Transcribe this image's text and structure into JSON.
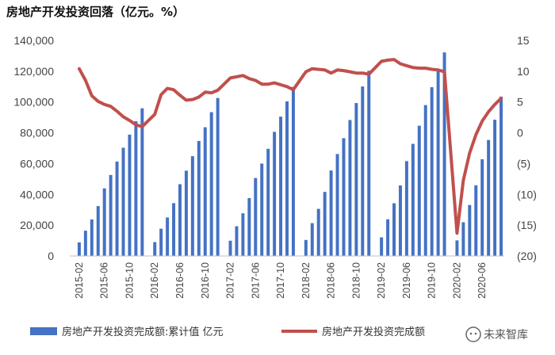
{
  "chart_data": {
    "type": "bar",
    "title": "房地产开发投资回落（亿元。%）",
    "x_tick_labels": [
      "2015-02",
      "2015-06",
      "2015-10",
      "2016-02",
      "2016-06",
      "2016-10",
      "2017-02",
      "2017-06",
      "2017-10",
      "2018-02",
      "2018-06",
      "2018-10",
      "2019-02",
      "2019-06",
      "2019-10",
      "2020-02",
      "2020-06"
    ],
    "y_left": {
      "ticks": [
        "0",
        "20,000",
        "40,000",
        "60,000",
        "80,000",
        "100,000",
        "120,000",
        "140,000"
      ],
      "ylim": [
        0,
        140000
      ]
    },
    "y_right": {
      "ticks": [
        "15",
        "10",
        "5",
        "0",
        "(5)",
        "(10)",
        "(15)",
        "(20)"
      ],
      "ylim": [
        -20,
        15
      ]
    },
    "grid": false,
    "legend": "bottom",
    "colors": {
      "bar": "#4472C4",
      "line": "#C0504D"
    },
    "series": [
      {
        "name": "房地产开发投资完成额:累计值 亿元",
        "type": "bar",
        "axis": "left",
        "points": [
          [
            "2015-02",
            8800
          ],
          [
            "2015-03",
            16400
          ],
          [
            "2015-04",
            23700
          ],
          [
            "2015-05",
            32400
          ],
          [
            "2015-06",
            43900
          ],
          [
            "2015-07",
            52600
          ],
          [
            "2015-08",
            61300
          ],
          [
            "2015-09",
            70300
          ],
          [
            "2015-10",
            78800
          ],
          [
            "2015-11",
            87500
          ],
          [
            "2015-12",
            95900
          ],
          [
            "2016-02",
            9000
          ],
          [
            "2016-03",
            17700
          ],
          [
            "2016-04",
            25000
          ],
          [
            "2016-05",
            34300
          ],
          [
            "2016-06",
            46600
          ],
          [
            "2016-07",
            55400
          ],
          [
            "2016-08",
            64800
          ],
          [
            "2016-09",
            74700
          ],
          [
            "2016-10",
            83600
          ],
          [
            "2016-11",
            93400
          ],
          [
            "2016-12",
            102600
          ],
          [
            "2017-02",
            9900
          ],
          [
            "2017-03",
            19300
          ],
          [
            "2017-04",
            27700
          ],
          [
            "2017-05",
            37600
          ],
          [
            "2017-06",
            50600
          ],
          [
            "2017-07",
            60000
          ],
          [
            "2017-08",
            69600
          ],
          [
            "2017-09",
            80600
          ],
          [
            "2017-10",
            90500
          ],
          [
            "2017-11",
            100400
          ],
          [
            "2017-12",
            109800
          ],
          [
            "2018-02",
            10400
          ],
          [
            "2018-03",
            21300
          ],
          [
            "2018-04",
            30600
          ],
          [
            "2018-05",
            41600
          ],
          [
            "2018-06",
            55500
          ],
          [
            "2018-07",
            66200
          ],
          [
            "2018-08",
            76500
          ],
          [
            "2018-09",
            88300
          ],
          [
            "2018-10",
            99300
          ],
          [
            "2018-11",
            110100
          ],
          [
            "2018-12",
            120300
          ],
          [
            "2019-02",
            12100
          ],
          [
            "2019-03",
            23800
          ],
          [
            "2019-04",
            34200
          ],
          [
            "2019-05",
            45800
          ],
          [
            "2019-06",
            61600
          ],
          [
            "2019-07",
            72800
          ],
          [
            "2019-08",
            84600
          ],
          [
            "2019-09",
            98000
          ],
          [
            "2019-10",
            109600
          ],
          [
            "2019-11",
            121300
          ],
          [
            "2019-12",
            132200
          ],
          [
            "2020-02",
            10100
          ],
          [
            "2020-03",
            21900
          ],
          [
            "2020-04",
            33100
          ],
          [
            "2020-05",
            45900
          ],
          [
            "2020-06",
            62800
          ],
          [
            "2020-07",
            75300
          ],
          [
            "2020-08",
            88500
          ],
          [
            "2020-09",
            103500
          ]
        ]
      },
      {
        "name": "房地产开发投资完成额",
        "type": "line",
        "axis": "right",
        "points": [
          [
            "2015-02",
            10.4
          ],
          [
            "2015-03",
            8.5
          ],
          [
            "2015-04",
            6.0
          ],
          [
            "2015-05",
            5.1
          ],
          [
            "2015-06",
            4.6
          ],
          [
            "2015-07",
            4.3
          ],
          [
            "2015-08",
            3.5
          ],
          [
            "2015-09",
            2.6
          ],
          [
            "2015-10",
            2.0
          ],
          [
            "2015-11",
            1.3
          ],
          [
            "2015-12",
            1.0
          ],
          [
            "2016-02",
            3.0
          ],
          [
            "2016-03",
            6.2
          ],
          [
            "2016-04",
            7.2
          ],
          [
            "2016-05",
            7.0
          ],
          [
            "2016-06",
            6.1
          ],
          [
            "2016-07",
            5.3
          ],
          [
            "2016-08",
            5.4
          ],
          [
            "2016-09",
            5.8
          ],
          [
            "2016-10",
            6.6
          ],
          [
            "2016-11",
            6.5
          ],
          [
            "2016-12",
            6.9
          ],
          [
            "2017-02",
            8.9
          ],
          [
            "2017-03",
            9.1
          ],
          [
            "2017-04",
            9.3
          ],
          [
            "2017-05",
            8.8
          ],
          [
            "2017-06",
            8.5
          ],
          [
            "2017-07",
            7.9
          ],
          [
            "2017-08",
            7.9
          ],
          [
            "2017-09",
            8.1
          ],
          [
            "2017-10",
            7.8
          ],
          [
            "2017-11",
            7.5
          ],
          [
            "2017-12",
            7.0
          ],
          [
            "2018-02",
            9.9
          ],
          [
            "2018-03",
            10.4
          ],
          [
            "2018-04",
            10.3
          ],
          [
            "2018-05",
            10.2
          ],
          [
            "2018-06",
            9.7
          ],
          [
            "2018-07",
            10.2
          ],
          [
            "2018-08",
            10.1
          ],
          [
            "2018-09",
            9.9
          ],
          [
            "2018-10",
            9.7
          ],
          [
            "2018-11",
            9.7
          ],
          [
            "2018-12",
            9.5
          ],
          [
            "2019-02",
            11.6
          ],
          [
            "2019-03",
            11.8
          ],
          [
            "2019-04",
            11.9
          ],
          [
            "2019-05",
            11.2
          ],
          [
            "2019-06",
            10.9
          ],
          [
            "2019-07",
            10.6
          ],
          [
            "2019-08",
            10.5
          ],
          [
            "2019-09",
            10.5
          ],
          [
            "2019-10",
            10.3
          ],
          [
            "2019-11",
            10.2
          ],
          [
            "2019-12",
            9.9
          ],
          [
            "2020-02",
            -16.3
          ],
          [
            "2020-03",
            -7.7
          ],
          [
            "2020-04",
            -3.3
          ],
          [
            "2020-05",
            -0.3
          ],
          [
            "2020-06",
            1.9
          ],
          [
            "2020-07",
            3.4
          ],
          [
            "2020-08",
            4.6
          ],
          [
            "2020-09",
            5.6
          ]
        ]
      }
    ]
  },
  "watermark": "未来智库"
}
